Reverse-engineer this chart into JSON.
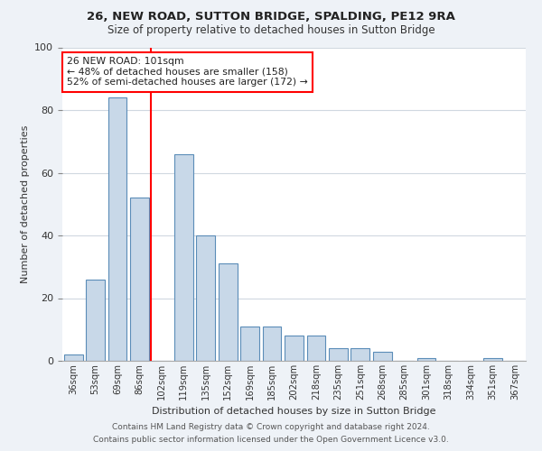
{
  "title1": "26, NEW ROAD, SUTTON BRIDGE, SPALDING, PE12 9RA",
  "title2": "Size of property relative to detached houses in Sutton Bridge",
  "xlabel": "Distribution of detached houses by size in Sutton Bridge",
  "ylabel": "Number of detached properties",
  "categories": [
    "36sqm",
    "53sqm",
    "69sqm",
    "86sqm",
    "102sqm",
    "119sqm",
    "135sqm",
    "152sqm",
    "169sqm",
    "185sqm",
    "202sqm",
    "218sqm",
    "235sqm",
    "251sqm",
    "268sqm",
    "285sqm",
    "301sqm",
    "318sqm",
    "334sqm",
    "351sqm",
    "367sqm"
  ],
  "values": [
    2,
    26,
    84,
    52,
    0,
    66,
    40,
    31,
    11,
    11,
    8,
    8,
    4,
    4,
    3,
    0,
    1,
    0,
    0,
    1,
    0
  ],
  "bar_color": "#c8d8e8",
  "bar_edge_color": "#5b8db8",
  "vline_index": 4,
  "annotation_text": "26 NEW ROAD: 101sqm\n← 48% of detached houses are smaller (158)\n52% of semi-detached houses are larger (172) →",
  "annotation_box_color": "white",
  "annotation_box_edge": "red",
  "vline_color": "red",
  "ylim": [
    0,
    100
  ],
  "yticks": [
    0,
    20,
    40,
    60,
    80,
    100
  ],
  "footer_line1": "Contains HM Land Registry data © Crown copyright and database right 2024.",
  "footer_line2": "Contains public sector information licensed under the Open Government Licence v3.0.",
  "bg_color": "#eef2f7",
  "plot_bg_color": "white",
  "grid_color": "#d0d8e0"
}
